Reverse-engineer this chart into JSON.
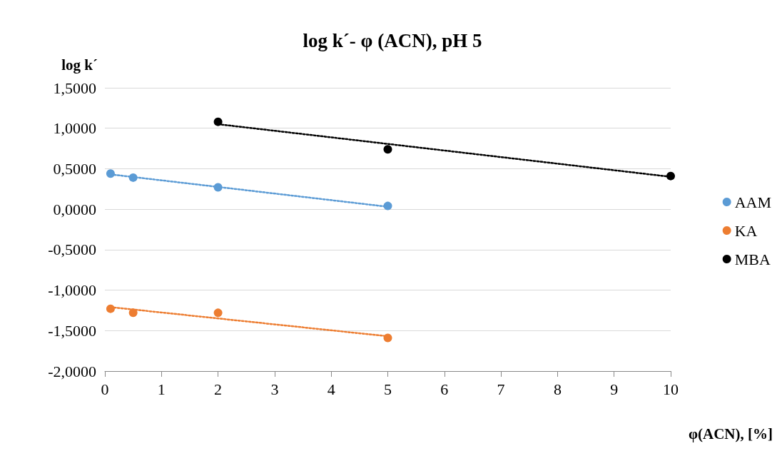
{
  "chart_data": {
    "type": "scatter",
    "title": "log k´- φ (ACN), pH 5",
    "xlabel": "φ(ACN), [%]",
    "ylabel": "log k´",
    "xlim": [
      0,
      10
    ],
    "xticks": [
      0,
      1,
      2,
      3,
      4,
      5,
      6,
      7,
      8,
      9,
      10
    ],
    "ylim": [
      -2,
      1.5
    ],
    "yticks": [
      {
        "value": -2,
        "label": "-2,0000"
      },
      {
        "value": -1.5,
        "label": "-1,5000"
      },
      {
        "value": -1,
        "label": "-1,0000"
      },
      {
        "value": -0.5,
        "label": "-0,5000"
      },
      {
        "value": 0,
        "label": "0,0000"
      },
      {
        "value": 0.5,
        "label": "0,5000"
      },
      {
        "value": 1,
        "label": "1,0000"
      },
      {
        "value": 1.5,
        "label": "1,5000"
      }
    ],
    "grid": "y",
    "legend": "right",
    "marker": "circle",
    "series": [
      {
        "name": "AAM",
        "color": "#5b9bd5",
        "x": [
          0.1,
          0.5,
          2,
          5
        ],
        "values": [
          0.44,
          0.39,
          0.27,
          0.04
        ]
      },
      {
        "name": "KA",
        "color": "#ed7d31",
        "x": [
          0.1,
          0.5,
          2,
          5
        ],
        "values": [
          -1.23,
          -1.28,
          -1.28,
          -1.59
        ]
      },
      {
        "name": "MBA",
        "color": "#000000",
        "x": [
          2,
          5,
          10
        ],
        "values": [
          1.08,
          0.74,
          0.41
        ]
      },
      {
        "type": "line",
        "color": "#5b9bd5",
        "x": [
          0.1,
          5
        ],
        "values": [
          0.43,
          0.03
        ],
        "line_style": "dotted",
        "marker": "none"
      },
      {
        "type": "line",
        "color": "#ed7d31",
        "x": [
          0.1,
          5
        ],
        "values": [
          -1.21,
          -1.57
        ],
        "line_style": "dotted",
        "marker": "none"
      },
      {
        "type": "line",
        "color": "#000000",
        "x": [
          2,
          10
        ],
        "values": [
          1.05,
          0.4
        ],
        "line_style": "dotted",
        "marker": "none"
      }
    ]
  }
}
